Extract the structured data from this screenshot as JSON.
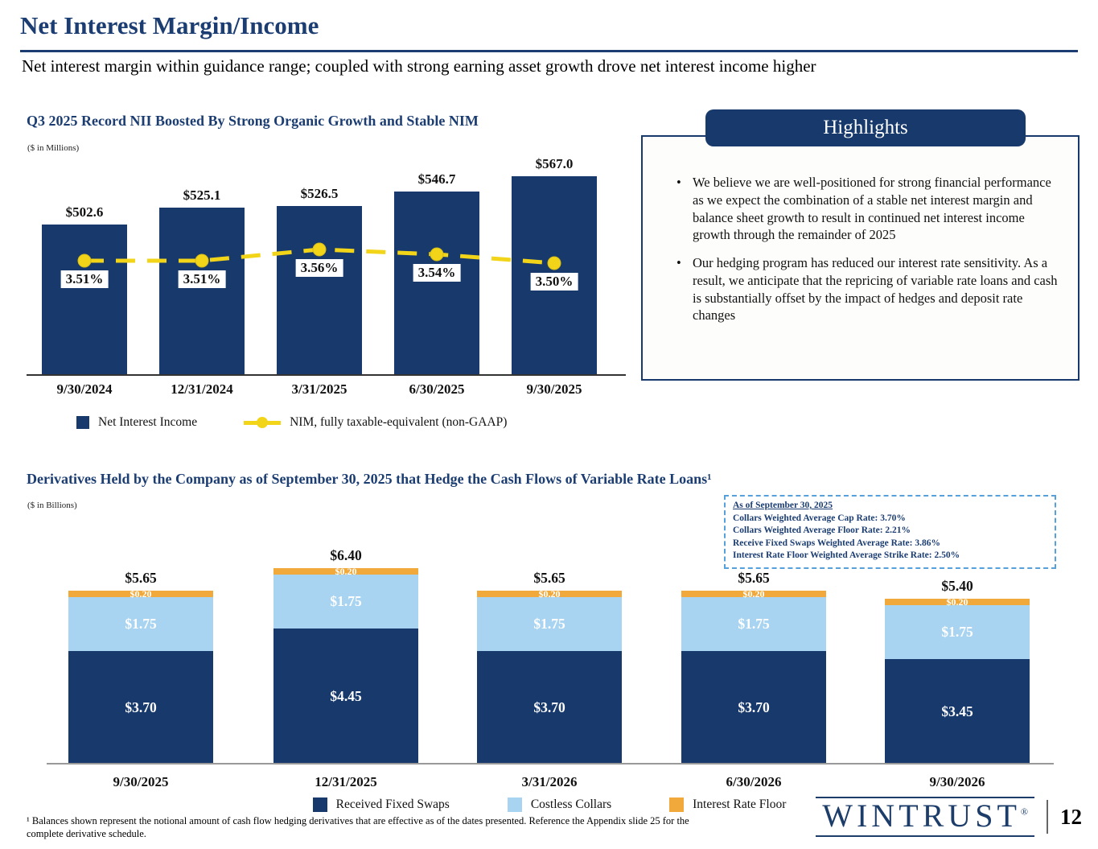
{
  "page": {
    "title": "Net Interest Margin/Income",
    "subtitle": "Net interest margin within guidance range; coupled with strong earning asset growth drove net interest income higher",
    "footnote": "¹ Balances shown represent the notional amount of cash flow hedging derivatives that are effective as of the dates presented. Reference the Appendix slide 25 for the complete derivative schedule.",
    "logo_text": "WINTRUST",
    "logo_reg": "®",
    "page_number": "12"
  },
  "highlights": {
    "title": "Highlights",
    "bullets": [
      "We believe we are well-positioned for strong financial performance as we expect the combination of a stable net interest margin and balance sheet growth to result in continued net interest income growth through the remainder of 2025",
      "Our hedging program has reduced our interest rate sensitivity. As a result, we anticipate that the repricing of variable rate loans and cash is substantially offset by the impact of hedges and deposit rate changes"
    ]
  },
  "nii_chart": {
    "title": "Q3 2025 Record NII Boosted By Strong Organic Growth and Stable NIM",
    "units": "($ in Millions)"
  },
  "deriv_chart": {
    "title": "Derivatives Held by the Company as of September 30, 2025 that Hedge the Cash Flows of Variable Rate Loans¹",
    "units": "($ in Billions)",
    "info_box": {
      "heading": "As of September 30, 2025",
      "lines": [
        "Collars Weighted Average Cap Rate: 3.70%",
        "Collars Weighted Average Floor Rate: 2.21%",
        "Receive Fixed Swaps Weighted Average Rate: 3.86%",
        "Interest Rate Floor Weighted Average Strike Rate: 2.50%"
      ]
    }
  },
  "chart_data": [
    {
      "type": "bar",
      "title": "Q3 2025 Record NII Boosted By Strong Organic Growth and Stable NIM",
      "units": "$ in Millions",
      "categories": [
        "9/30/2024",
        "12/31/2024",
        "3/31/2025",
        "6/30/2025",
        "9/30/2025"
      ],
      "series": [
        {
          "name": "Net Interest Income",
          "type": "bar",
          "values": [
            502.6,
            525.1,
            526.5,
            546.7,
            567.0
          ],
          "labels": [
            "$502.6",
            "$525.1",
            "$526.5",
            "$546.7",
            "$567.0"
          ]
        },
        {
          "name": "NIM, fully taxable-equivalent (non-GAAP)",
          "type": "line",
          "axis": "secondary",
          "values": [
            3.51,
            3.51,
            3.56,
            3.54,
            3.5
          ],
          "labels": [
            "3.51%",
            "3.51%",
            "3.56%",
            "3.54%",
            "3.50%"
          ]
        }
      ],
      "legend_position": "bottom",
      "grid": false
    },
    {
      "type": "bar",
      "stacked": true,
      "title": "Derivatives Held by the Company as of September 30, 2025 that Hedge the Cash Flows of Variable Rate Loans",
      "units": "$ in Billions",
      "categories": [
        "9/30/2025",
        "12/31/2025",
        "3/31/2026",
        "6/30/2026",
        "9/30/2026"
      ],
      "series": [
        {
          "name": "Received Fixed Swaps",
          "values": [
            3.7,
            4.45,
            3.7,
            3.7,
            3.45
          ],
          "labels": [
            "$3.70",
            "$4.45",
            "$3.70",
            "$3.70",
            "$3.45"
          ]
        },
        {
          "name": "Costless Collars",
          "values": [
            1.75,
            1.75,
            1.75,
            1.75,
            1.75
          ],
          "labels": [
            "$1.75",
            "$1.75",
            "$1.75",
            "$1.75",
            "$1.75"
          ]
        },
        {
          "name": "Interest Rate Floor",
          "values": [
            0.2,
            0.2,
            0.2,
            0.2,
            0.2
          ],
          "labels": [
            "$0.20",
            "$0.20",
            "$0.20",
            "$0.20",
            "$0.20"
          ]
        }
      ],
      "totals": [
        5.65,
        6.4,
        5.65,
        5.65,
        5.4
      ],
      "total_labels": [
        "$5.65",
        "$6.40",
        "$5.65",
        "$5.65",
        "$5.40"
      ],
      "legend_position": "bottom",
      "grid": false
    }
  ],
  "colors": {
    "navy": "#17396B",
    "title_blue": "#1B3D72",
    "yellow": "#F2D418",
    "light_blue": "#A9D4F1",
    "orange": "#F2A93C",
    "dashed_border_blue": "#56A0DC"
  }
}
